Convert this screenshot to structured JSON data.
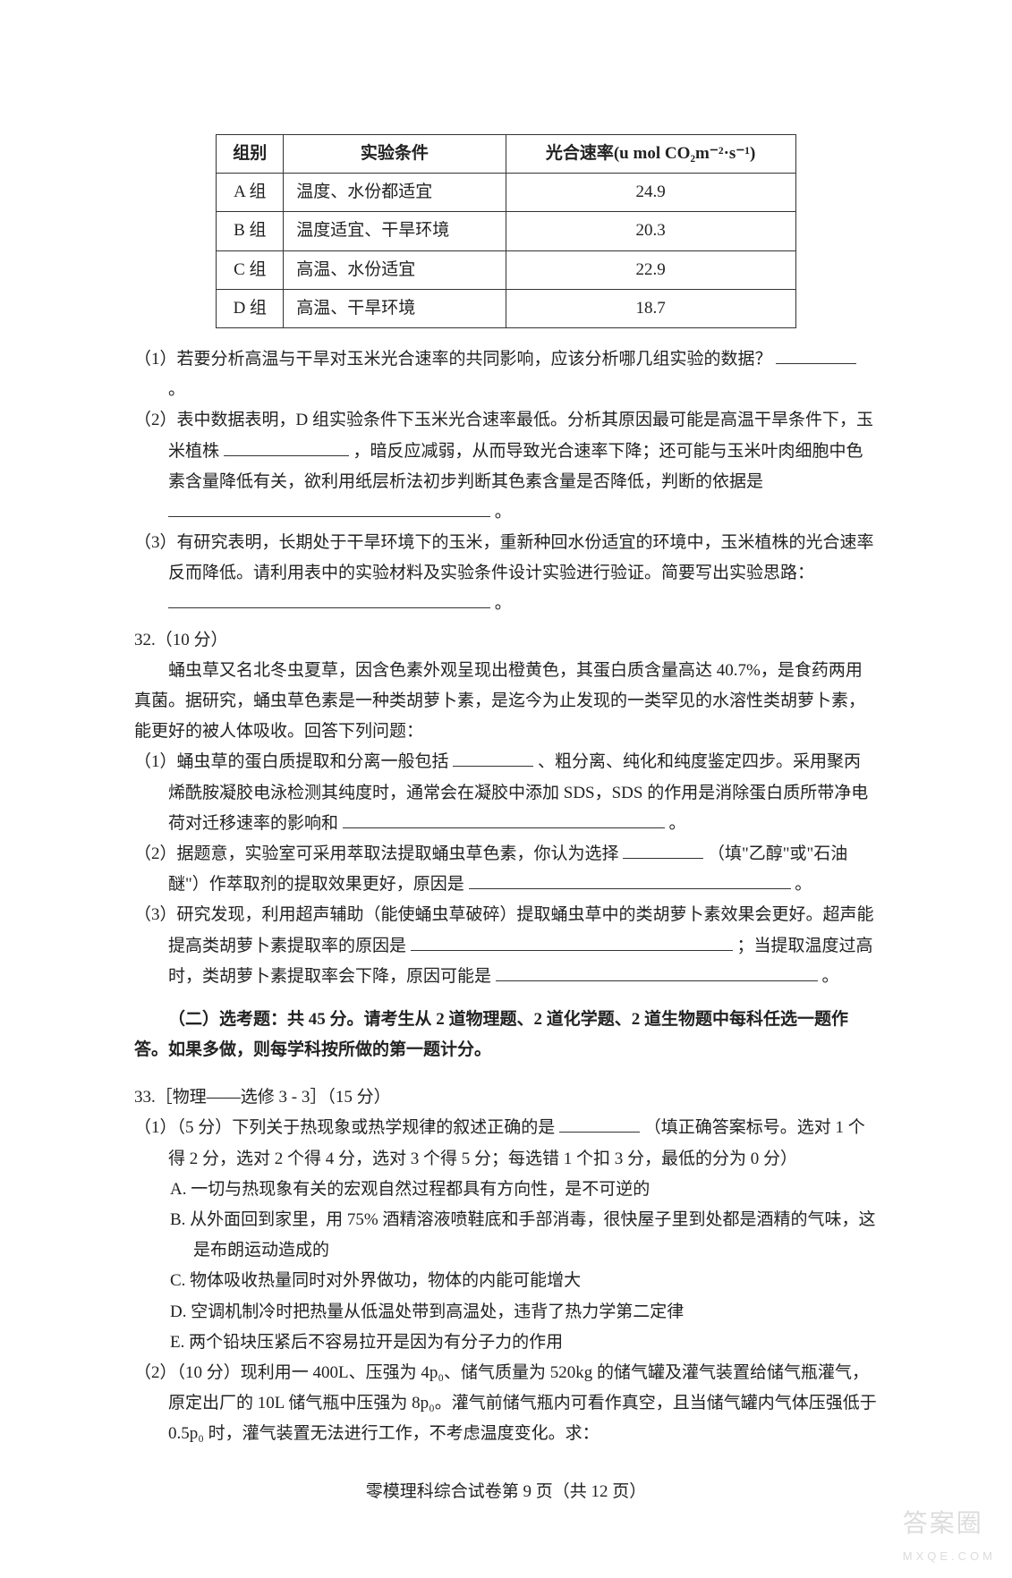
{
  "table": {
    "headers": [
      "组别",
      "实验条件",
      "光合速率(u mol CO₂m⁻²·s⁻¹)"
    ],
    "rows": [
      [
        "A 组",
        "温度、水份都适宜",
        "24.9"
      ],
      [
        "B 组",
        "温度适宜、干旱环境",
        "20.3"
      ],
      [
        "C 组",
        "高温、水份适宜",
        "22.9"
      ],
      [
        "D 组",
        "高温、干旱环境",
        "18.7"
      ]
    ],
    "border_color": "#333333",
    "font_size": 19
  },
  "q31": {
    "p1": "（1）若要分析高温与干旱对玉米光合速率的共同影响，应该分析哪几组实验的数据？",
    "p1_tail": "。",
    "p2a": "（2）表中数据表明，D 组实验条件下玉米光合速率最低。分析其原因最可能是高温干旱条件下，玉米植株",
    "p2b": "，暗反应减弱，从而导致光合速率下降；还可能与玉米叶肉细胞中色素含量降低有关，欲利用纸层析法初步判断其色素含量是否降低，判断的依据是",
    "p2_tail": "。",
    "p3a": "（3）有研究表明，长期处于干旱环境下的玉米，重新种回水份适宜的环境中，玉米植株的光合速率反而降低。请利用表中的实验材料及实验条件设计实验进行验证。简要写出实验思路：",
    "p3_tail": "。"
  },
  "q32": {
    "num": "32.（10 分）",
    "intro": "蛹虫草又名北冬虫夏草，因含色素外观呈现出橙黄色，其蛋白质含量高达 40.7%，是食药两用真菌。据研究，蛹虫草色素是一种类胡萝卜素，是迄今为止发现的一类罕见的水溶性类胡萝卜素，能更好的被人体吸收。回答下列问题：",
    "p1a": "（1）蛹虫草的蛋白质提取和分离一般包括",
    "p1b": "、粗分离、纯化和纯度鉴定四步。采用聚丙烯酰胺凝胶电泳检测其纯度时，通常会在凝胶中添加 SDS，SDS 的作用是消除蛋白质所带净电荷对迁移速率的影响和",
    "p1_tail": "。",
    "p2a": "（2）据题意，实验室可采用萃取法提取蛹虫草色素，你认为选择",
    "p2b": "（填\"乙醇\"或\"石油醚\"）作萃取剂的提取效果更好，原因是",
    "p2_tail": "。",
    "p3a": "（3）研究发现，利用超声辅助（能使蛹虫草破碎）提取蛹虫草中的类胡萝卜素效果会更好。超声能提高类胡萝卜素提取率的原因是",
    "p3b": "；当提取温度过高时，类胡萝卜素提取率会下降，原因可能是",
    "p3_tail": "。"
  },
  "section2": {
    "head": "（二）选考题：共 45 分。请考生从 2 道物理题、2 道化学题、2 道生物题中每科任选一题作答。如果多做，则每学科按所做的第一题计分。"
  },
  "q33": {
    "num": "33.［物理——选修 3 - 3］（15 分）",
    "p1a": "（1）（5 分）下列关于热现象或热学规律的叙述正确的是",
    "p1b": "（填正确答案标号。选对 1 个得 2 分，选对 2 个得 4 分，选对 3 个得 5 分；每选错 1 个扣 3 分，最低的分为 0 分）",
    "opts": {
      "A": "A. 一切与热现象有关的宏观自然过程都具有方向性，是不可逆的",
      "B": "B. 从外面回到家里，用 75% 酒精溶液喷鞋底和手部消毒，很快屋子里到处都是酒精的气味，这是布朗运动造成的",
      "C": "C. 物体吸收热量同时对外界做功，物体的内能可能增大",
      "D": "D. 空调机制冷时把热量从低温处带到高温处，违背了热力学第二定律",
      "E": "E. 两个铅块压紧后不容易拉开是因为有分子力的作用"
    },
    "p2": "（2）（10 分）现利用一 400L、压强为 4p₀、储气质量为 520kg 的储气罐及灌气装置给储气瓶灌气，原定出厂的 10L 储气瓶中压强为 8p₀。灌气前储气瓶内可看作真空，且当储气罐内气体压强低于 0.5p₀ 时，灌气装置无法进行工作，不考虑温度变化。求："
  },
  "footer": "零模理科综合试卷第 9 页（共 12 页）",
  "watermark": {
    "big": "答案圈",
    "small": "MXQE.COM"
  },
  "style": {
    "page_bg": "#ffffff",
    "text_color": "#222222",
    "font_size_body": 19,
    "line_height": 1.8,
    "blank_border": "#333333"
  }
}
